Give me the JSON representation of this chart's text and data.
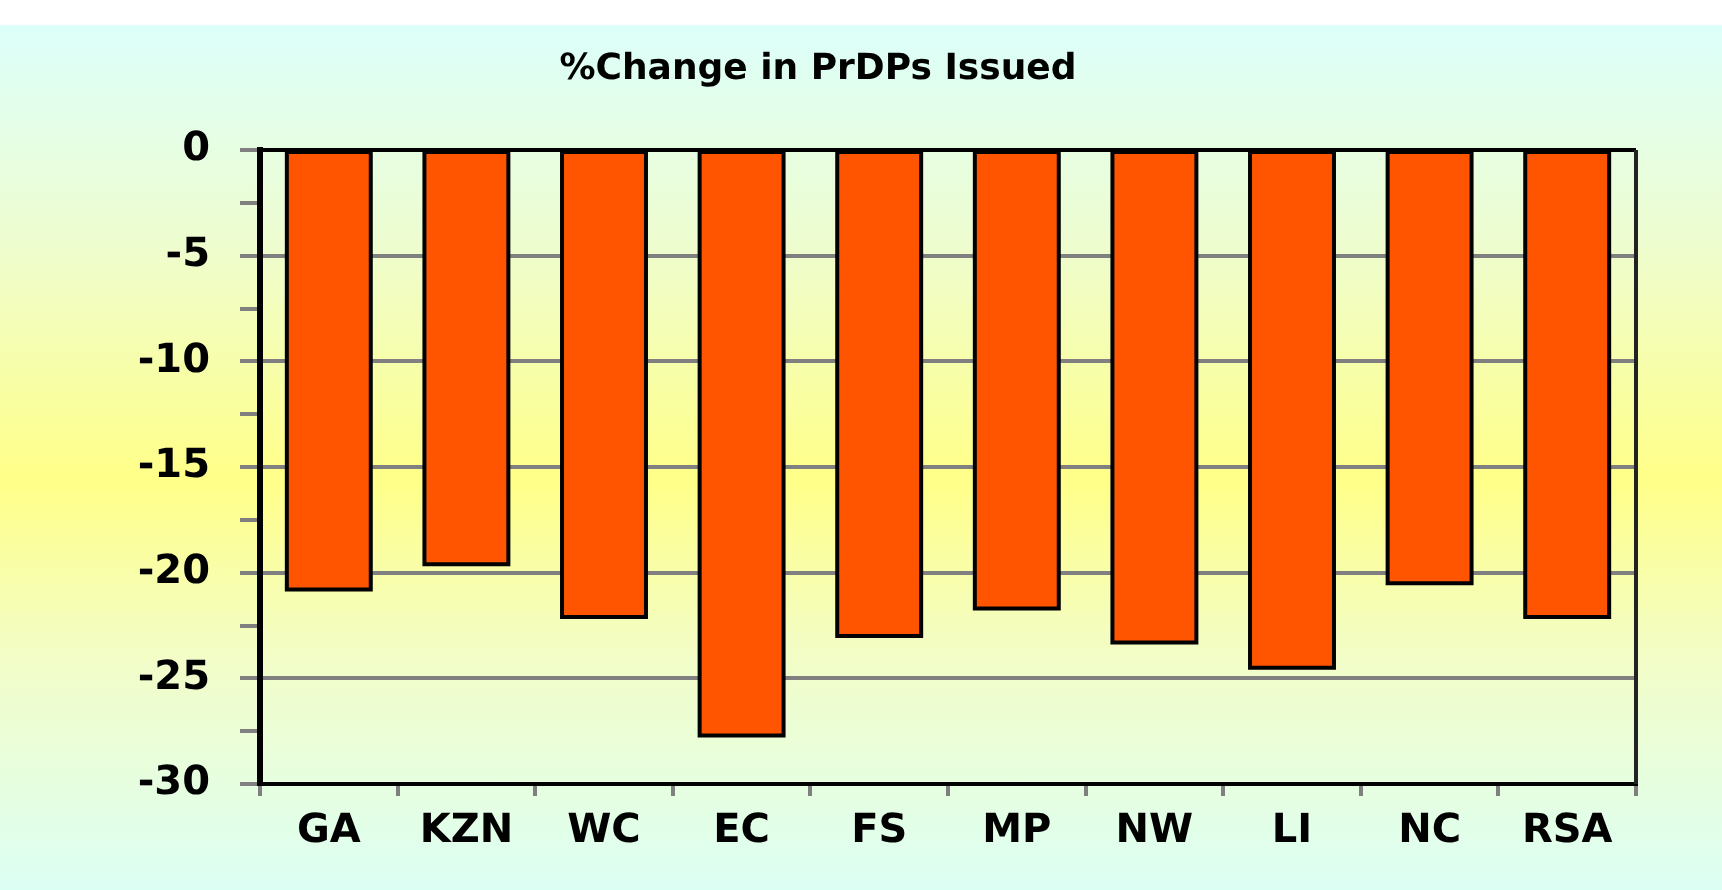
{
  "chart_data": {
    "type": "bar",
    "title": "%Change in PrDPs Issued",
    "categories": [
      "GA",
      "KZN",
      "WC",
      "EC",
      "FS",
      "MP",
      "NW",
      "LI",
      "NC",
      "RSA"
    ],
    "values": [
      -20.8,
      -19.6,
      -22.1,
      -27.7,
      -23.0,
      -21.7,
      -23.3,
      -24.5,
      -20.5,
      -22.1
    ],
    "color": "#ff5500",
    "ylim": [
      -30,
      0
    ],
    "yticks": [
      -30,
      {
        "value": -27.5,
        "label": null
      },
      -25,
      {
        "value": -22.5,
        "label": null
      },
      -20,
      {
        "value": -17.5,
        "label": null
      },
      -15,
      {
        "value": -12.5,
        "label": null
      },
      -10,
      {
        "value": -7.5,
        "label": null
      },
      -5,
      {
        "value": -2.5,
        "label": null
      },
      0
    ],
    "grid": "y",
    "legend": false
  }
}
